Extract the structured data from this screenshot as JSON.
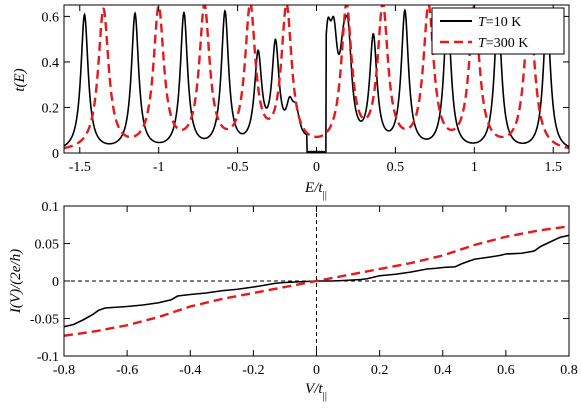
{
  "chart_data": [
    {
      "type": "line",
      "title": "",
      "xlabel": "E/t||",
      "ylabel": "t(E)",
      "xlim": [
        -1.6,
        1.6
      ],
      "ylim": [
        0,
        0.65
      ],
      "xticks": [
        -1.5,
        -1,
        -0.5,
        0,
        0.5,
        1,
        1.5
      ],
      "xtick_labels": [
        "-1.5",
        "-1",
        "-0.5",
        "0",
        "0.5",
        "1",
        "1.5"
      ],
      "yticks": [
        0,
        0.2,
        0.4,
        0.6
      ],
      "ytick_labels": [
        "0",
        "0.2",
        "0.4",
        "0.6"
      ],
      "grid": false,
      "legend_position": "top-right",
      "legend": [
        {
          "label": "T=10 K",
          "var": "T",
          "rest": "=10 K"
        },
        {
          "label": "T=300 K",
          "var": "T",
          "rest": "=300 K"
        }
      ],
      "series": [
        {
          "name": "T=10 K",
          "color": "#000000",
          "dash": "solid",
          "peaks": [
            {
              "x": -1.47,
              "h": 0.6
            },
            {
              "x": -1.15,
              "h": 0.6
            },
            {
              "x": -0.84,
              "h": 0.6
            },
            {
              "x": -0.58,
              "h": 0.6
            },
            {
              "x": -0.37,
              "h": 0.4
            },
            {
              "x": -0.26,
              "h": 0.44
            },
            {
              "x": -0.17,
              "h": 0.14
            },
            {
              "x": -0.13,
              "h": 0.12
            },
            {
              "x": 0.07,
              "h": 0.41
            },
            {
              "x": 0.11,
              "h": 0.36
            },
            {
              "x": 0.17,
              "h": 0.26
            },
            {
              "x": 0.2,
              "h": 0.39
            },
            {
              "x": 0.36,
              "h": 0.48
            },
            {
              "x": 0.56,
              "h": 0.6
            },
            {
              "x": 0.83,
              "h": 0.6
            },
            {
              "x": 1.15,
              "h": 0.6
            },
            {
              "x": 1.46,
              "h": 0.6
            }
          ],
          "width": 0.028
        },
        {
          "name": "T=300 K",
          "color": "#e31a1c",
          "dash": "dashed",
          "peaks": [
            {
              "x": -1.35,
              "h": 0.62
            },
            {
              "x": -1.0,
              "h": 0.62
            },
            {
              "x": -0.71,
              "h": 0.62
            },
            {
              "x": -0.42,
              "h": 0.62
            },
            {
              "x": -0.19,
              "h": 0.62
            },
            {
              "x": 0.19,
              "h": 0.62
            },
            {
              "x": 0.42,
              "h": 0.62
            },
            {
              "x": 0.71,
              "h": 0.62
            },
            {
              "x": 1.0,
              "h": 0.62
            },
            {
              "x": 1.35,
              "h": 0.62
            }
          ],
          "width": 0.04
        }
      ]
    },
    {
      "type": "line",
      "title": "",
      "xlabel": "V/t||",
      "ylabel": "I(V)/(2e/h)",
      "xlim": [
        -0.8,
        0.8
      ],
      "ylim": [
        -0.1,
        0.1
      ],
      "xticks": [
        -0.8,
        -0.6,
        -0.4,
        -0.2,
        0,
        0.2,
        0.4,
        0.6,
        0.8
      ],
      "xtick_labels": [
        "-0.8",
        "-0.6",
        "-0.4",
        "-0.2",
        "0",
        "0.2",
        "0.4",
        "0.6",
        "0.8"
      ],
      "yticks": [
        -0.1,
        -0.05,
        0,
        0.05,
        0.1
      ],
      "ytick_labels": [
        "-0.1",
        "-0.05",
        "0",
        "0.05",
        "0.1"
      ],
      "grid": false,
      "series": [
        {
          "name": "T=10 K",
          "color": "#000000",
          "dash": "solid",
          "x": [
            -0.8,
            -0.77,
            -0.74,
            -0.71,
            -0.69,
            -0.67,
            -0.6,
            -0.55,
            -0.5,
            -0.46,
            -0.44,
            -0.4,
            -0.35,
            -0.3,
            -0.25,
            -0.2,
            -0.17,
            -0.13,
            -0.1,
            -0.05,
            0,
            0.05,
            0.1,
            0.14,
            0.16,
            0.2,
            0.25,
            0.3,
            0.35,
            0.38,
            0.4,
            0.44,
            0.46,
            0.5,
            0.55,
            0.58,
            0.6,
            0.65,
            0.69,
            0.71,
            0.74,
            0.77,
            0.8
          ],
          "y": [
            -0.061,
            -0.058,
            -0.052,
            -0.045,
            -0.039,
            -0.036,
            -0.034,
            -0.032,
            -0.029,
            -0.025,
            -0.02,
            -0.018,
            -0.016,
            -0.013,
            -0.011,
            -0.008,
            -0.006,
            -0.003,
            -0.002,
            -0.001,
            0.0,
            0.0,
            0.001,
            0.002,
            0.003,
            0.007,
            0.009,
            0.012,
            0.016,
            0.017,
            0.018,
            0.019,
            0.023,
            0.029,
            0.032,
            0.034,
            0.036,
            0.037,
            0.04,
            0.046,
            0.052,
            0.058,
            0.061
          ]
        },
        {
          "name": "T=300 K",
          "color": "#e31a1c",
          "dash": "dashed",
          "x": [
            -0.8,
            -0.7,
            -0.6,
            -0.5,
            -0.4,
            -0.3,
            -0.2,
            -0.1,
            0,
            0.1,
            0.2,
            0.3,
            0.4,
            0.5,
            0.6,
            0.7,
            0.8
          ],
          "y": [
            -0.073,
            -0.067,
            -0.059,
            -0.048,
            -0.034,
            -0.024,
            -0.016,
            -0.008,
            0.0,
            0.008,
            0.016,
            0.024,
            0.034,
            0.048,
            0.059,
            0.067,
            0.073
          ]
        }
      ]
    }
  ]
}
